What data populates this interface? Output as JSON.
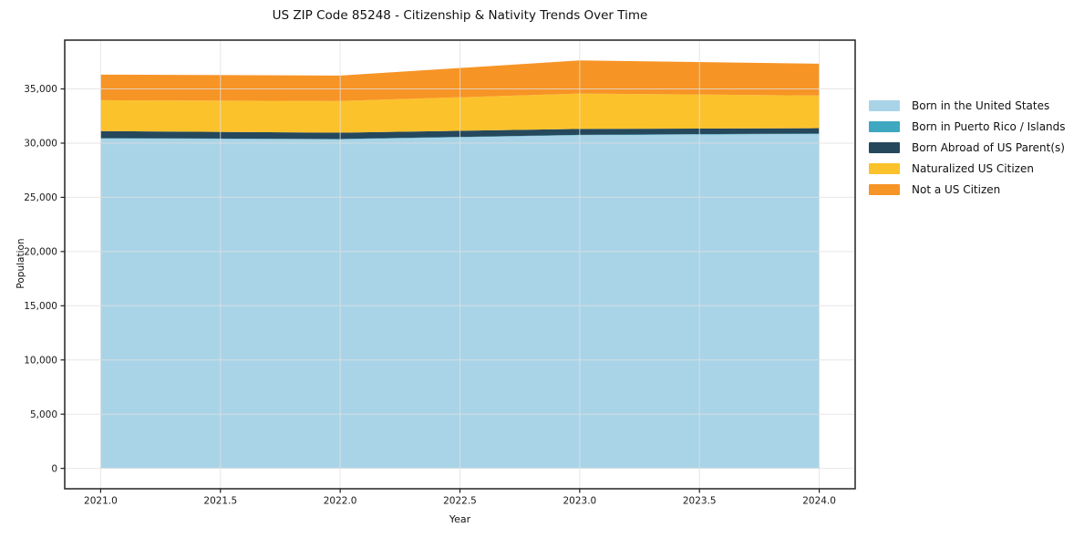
{
  "chart_data": {
    "type": "area",
    "stacked": true,
    "title": "US ZIP Code 85248 - Citizenship & Nativity Trends Over Time",
    "xlabel": "Year",
    "ylabel": "Population",
    "x": [
      2021,
      2022,
      2023,
      2024
    ],
    "series": [
      {
        "name": "Born in the United States",
        "color": "#a9d4e8",
        "values": [
          30430,
          30350,
          30730,
          30850
        ]
      },
      {
        "name": "Born in Puerto Rico / Islands",
        "color": "#3ea8c0",
        "values": [
          30,
          30,
          40,
          30
        ]
      },
      {
        "name": "Born Abroad of US Parent(s)",
        "color": "#25485c",
        "values": [
          650,
          580,
          540,
          500
        ]
      },
      {
        "name": "Naturalized US Citizen",
        "color": "#fcc22c",
        "values": [
          2850,
          2930,
          3260,
          3010
        ]
      },
      {
        "name": "Not a US Citizen",
        "color": "#f79426",
        "values": [
          2360,
          2340,
          3060,
          2940
        ]
      }
    ],
    "totals": [
      36320,
      36230,
      37630,
      37330
    ],
    "xlim": [
      2020.85,
      2024.15
    ],
    "ylim": [
      -1881,
      39502
    ],
    "xticks": {
      "values": [
        2021.0,
        2021.5,
        2022.0,
        2022.5,
        2023.0,
        2023.5,
        2024.0
      ],
      "labels": [
        "2021.0",
        "2021.5",
        "2022.0",
        "2022.5",
        "2023.0",
        "2023.5",
        "2024.0"
      ]
    },
    "yticks": {
      "values": [
        0,
        5000,
        10000,
        15000,
        20000,
        25000,
        30000,
        35000
      ],
      "labels": [
        "0",
        "5,000",
        "10,000",
        "15,000",
        "20,000",
        "25,000",
        "30,000",
        "35,000"
      ]
    },
    "grid": true,
    "grid_on_top": true,
    "legend_position": "right"
  },
  "colors": {
    "background": "#ffffff",
    "grid": "#e0e0e0",
    "spine": "#222222",
    "tick_label": "#1a1a1a"
  }
}
